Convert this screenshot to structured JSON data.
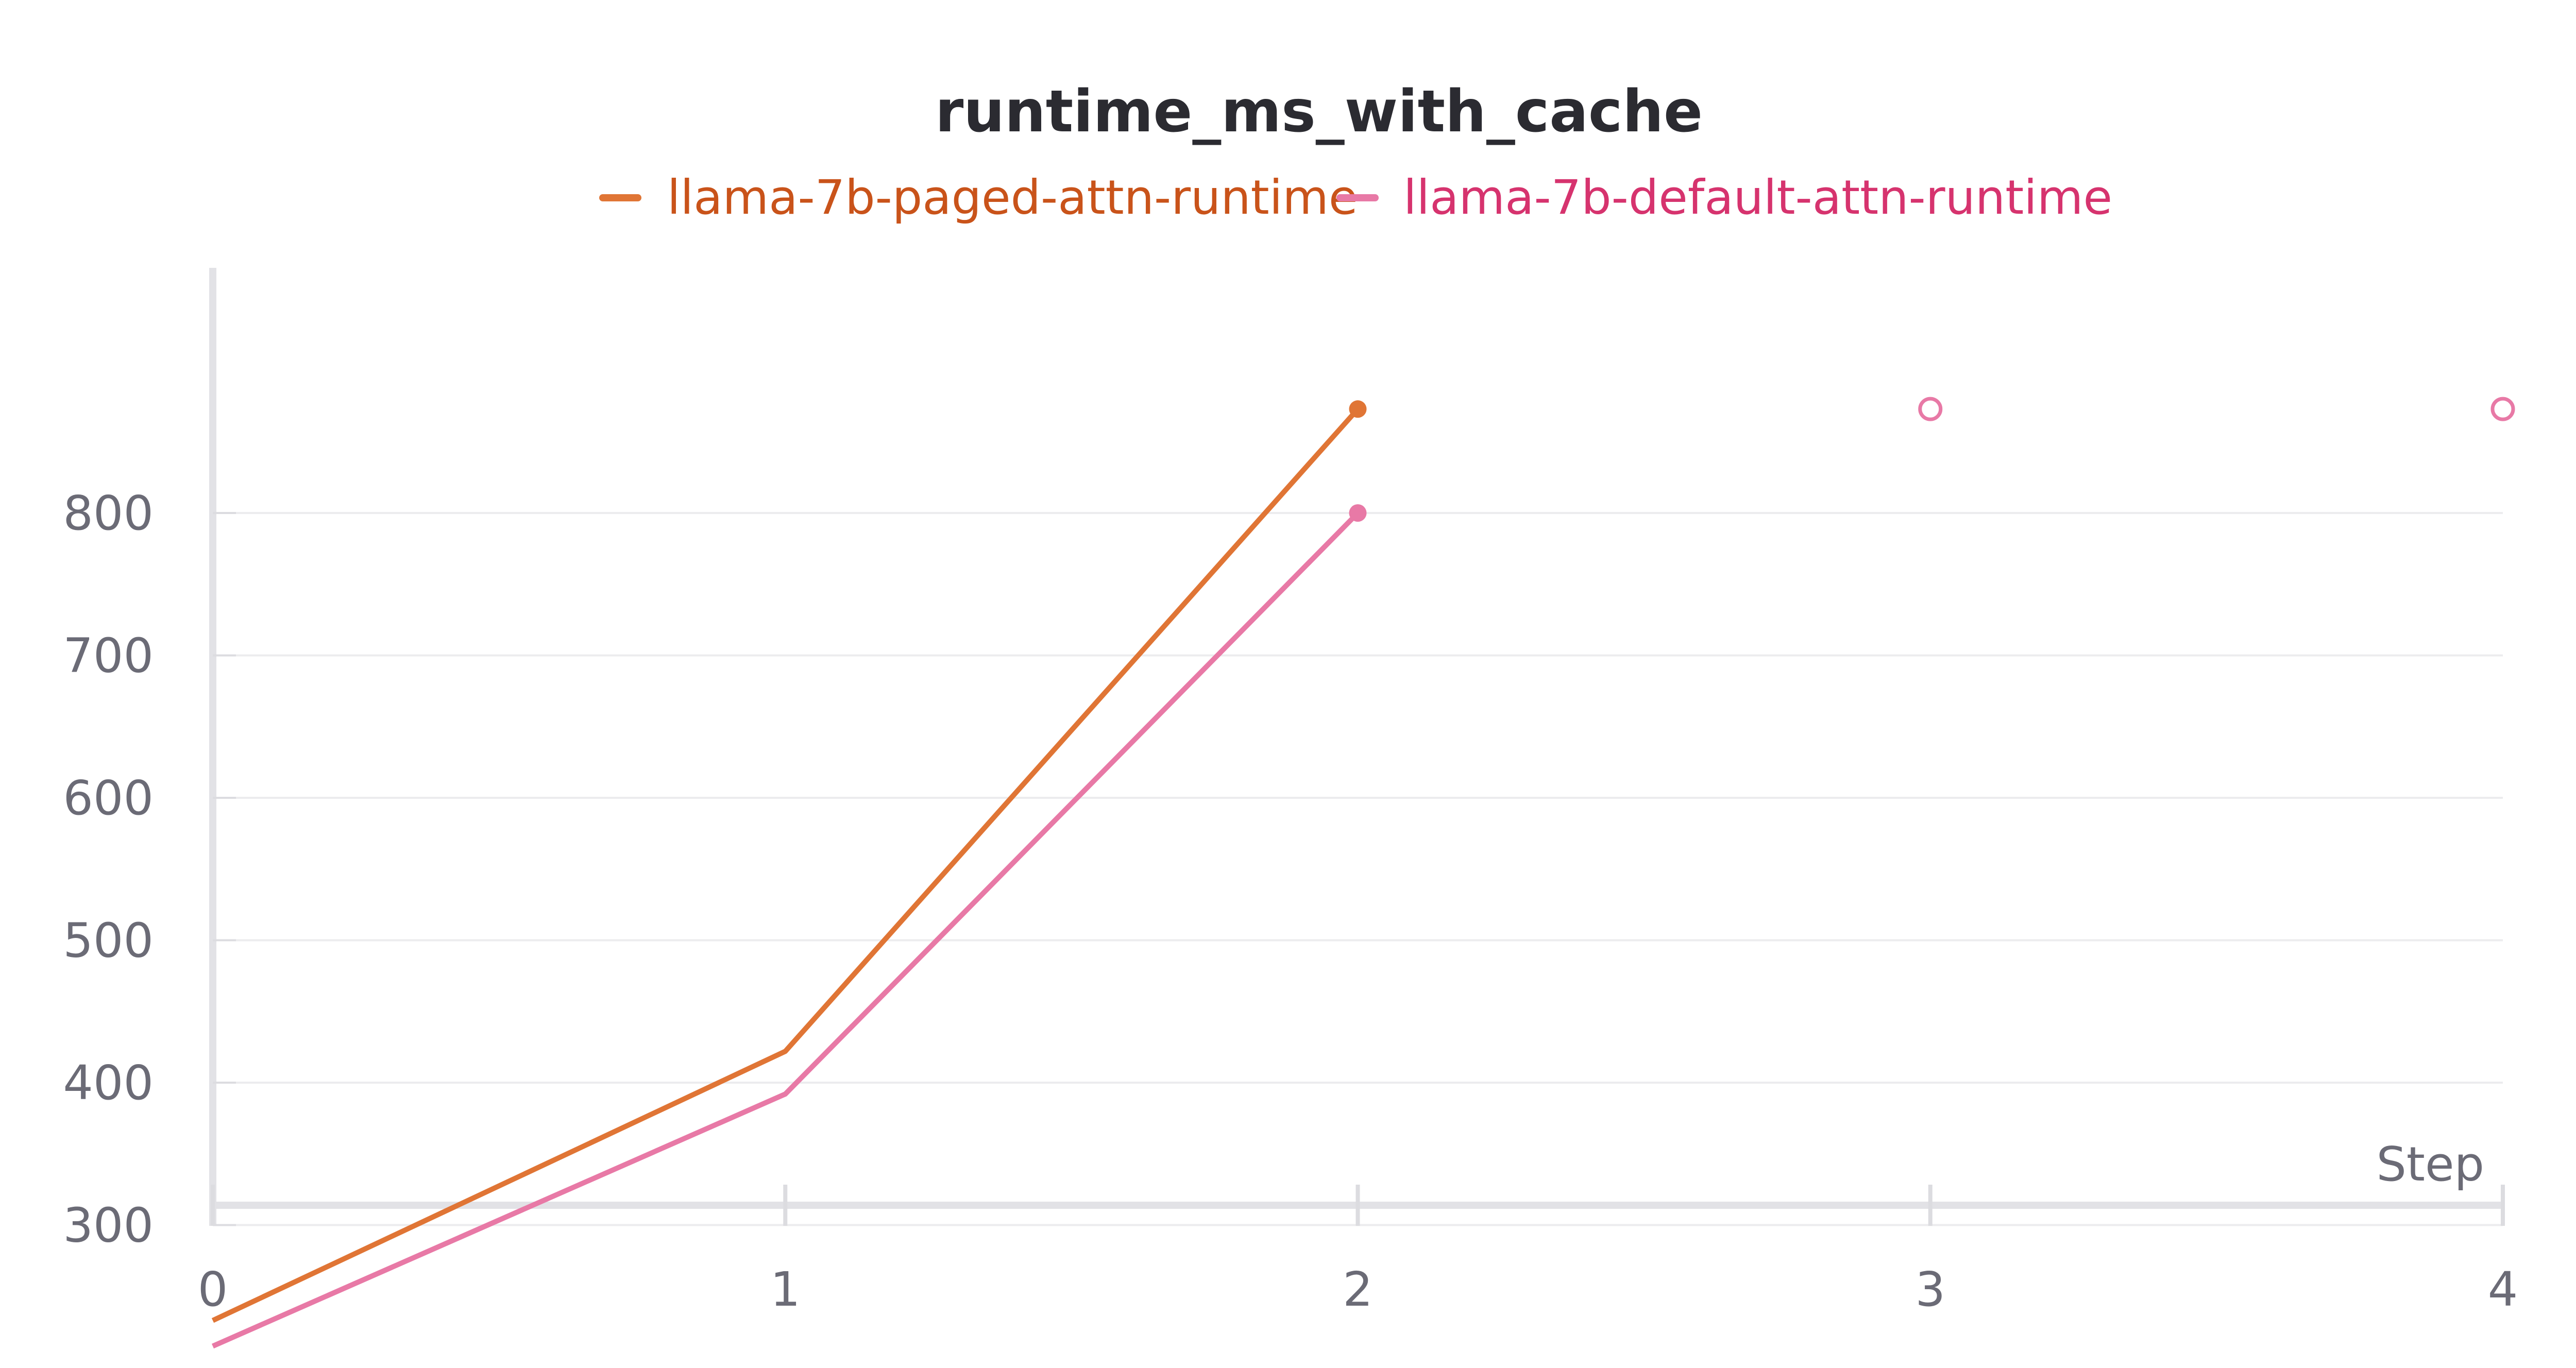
{
  "chart_data": {
    "type": "line",
    "title": "runtime_ms_with_cache",
    "xlabel": "Step",
    "ylabel": "",
    "x_ticks": [
      "0",
      "1",
      "2",
      "3",
      "4"
    ],
    "y_ticks": [
      "300",
      "400",
      "500",
      "600",
      "700",
      "800"
    ],
    "xlim": [
      0,
      4
    ],
    "ylim": [
      215,
      875
    ],
    "grid": true,
    "legend_position": "top-center",
    "series": [
      {
        "name": "llama-7b-paged-attn-runtime",
        "color": "#e07535",
        "label_color": "#c9531a",
        "x": [
          0,
          1,
          2
        ],
        "y": [
          233,
          422,
          873
        ]
      },
      {
        "name": "llama-7b-default-attn-runtime",
        "color": "#e879a6",
        "label_color": "#d6336e",
        "x": [
          0,
          1,
          2
        ],
        "y": [
          215,
          392,
          800
        ]
      }
    ],
    "hidden_points": {
      "color": "#e879a6",
      "x": [
        3,
        4
      ],
      "y": [
        873,
        873
      ]
    }
  }
}
